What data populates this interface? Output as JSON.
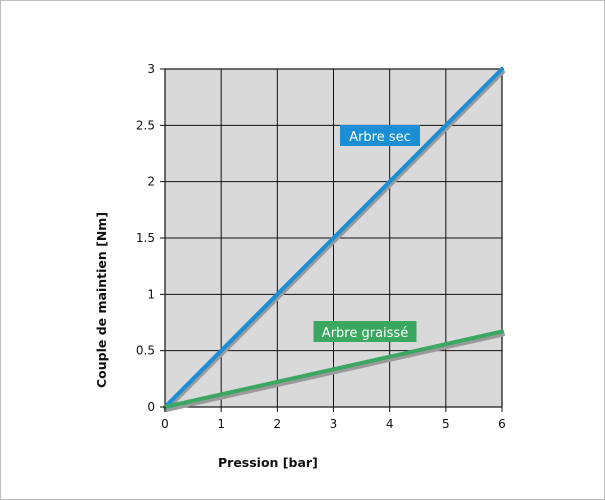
{
  "chart_data": {
    "type": "line",
    "title": "",
    "xlabel": "Pression [bar]",
    "ylabel": "Couple de maintien [Nm]",
    "xlim": [
      0,
      6
    ],
    "ylim": [
      0,
      3
    ],
    "x_ticks": [
      "0",
      "1",
      "2",
      "3",
      "4",
      "5",
      "6"
    ],
    "y_ticks": [
      "0",
      "0.5",
      "1",
      "1.5",
      "2",
      "2.5",
      "3"
    ],
    "grid": true,
    "plot_background": "#d9d9d9",
    "series": [
      {
        "name": "Arbre sec",
        "color": "#1a8fd6",
        "x": [
          0,
          1,
          2,
          3,
          4,
          5,
          6
        ],
        "y": [
          0,
          0.5,
          1.0,
          1.5,
          2.0,
          2.5,
          3.0
        ]
      },
      {
        "name": "Arbre graissé",
        "color": "#3aa860",
        "x": [
          0,
          6
        ],
        "y": [
          0,
          0.67
        ]
      }
    ]
  }
}
